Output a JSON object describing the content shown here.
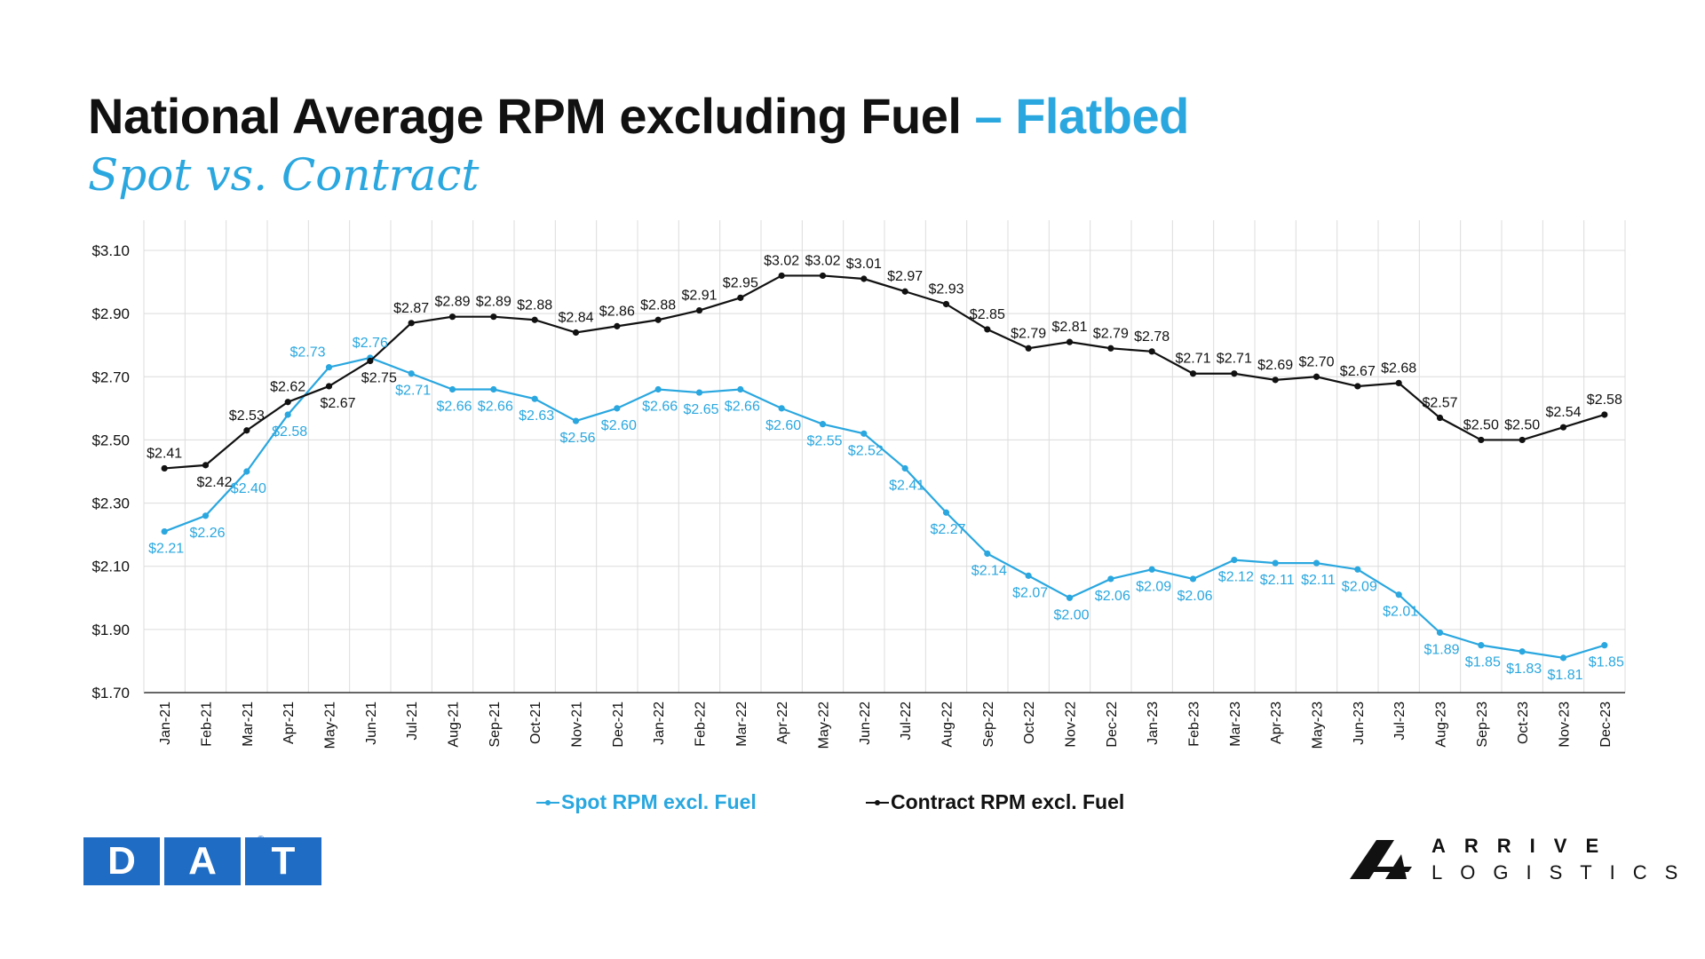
{
  "title": {
    "main": "National Average RPM excluding Fuel",
    "accent": "– Flatbed",
    "subtitle": "Spot vs. Contract"
  },
  "colors": {
    "spot": "#2aa7df",
    "contract": "#111111",
    "grid": "#dcdcdc",
    "dat_blue": "#1f6cc4"
  },
  "chart_data": {
    "type": "line",
    "categories": [
      "Jan-21",
      "Feb-21",
      "Mar-21",
      "Apr-21",
      "May-21",
      "Jun-21",
      "Jul-21",
      "Aug-21",
      "Sep-21",
      "Oct-21",
      "Nov-21",
      "Dec-21",
      "Jan-22",
      "Feb-22",
      "Mar-22",
      "Apr-22",
      "May-22",
      "Jun-22",
      "Jul-22",
      "Aug-22",
      "Sep-22",
      "Oct-22",
      "Nov-22",
      "Dec-22",
      "Jan-23",
      "Feb-23",
      "Mar-23",
      "Apr-23",
      "May-23",
      "Jun-23",
      "Jul-23",
      "Aug-23",
      "Sep-23",
      "Oct-23",
      "Nov-23",
      "Dec-23"
    ],
    "y_ticks": [
      "$3.10",
      "$2.90",
      "$2.70",
      "$2.50",
      "$2.30",
      "$2.10",
      "$1.90",
      "$1.70"
    ],
    "ylim": [
      1.7,
      3.1
    ],
    "grid": true,
    "legend_position": "bottom",
    "series": [
      {
        "name": "Spot RPM excl. Fuel",
        "color": "#2aa7df",
        "values": [
          2.21,
          2.26,
          2.4,
          2.58,
          2.73,
          2.76,
          2.71,
          2.66,
          2.66,
          2.63,
          2.56,
          2.6,
          2.66,
          2.65,
          2.66,
          2.6,
          2.55,
          2.52,
          2.41,
          2.27,
          2.14,
          2.07,
          2.0,
          2.06,
          2.09,
          2.06,
          2.12,
          2.11,
          2.11,
          2.09,
          2.01,
          1.89,
          1.85,
          1.83,
          1.81,
          1.85
        ],
        "labels": [
          "$2.21",
          "$2.26",
          "$2.40",
          "$2.58",
          "$2.73",
          "$2.76",
          "$2.71",
          "$2.66",
          "$2.66",
          "$2.63",
          "$2.56",
          "$2.60",
          "$2.66",
          "$2.65",
          "$2.66",
          "$2.60",
          "$2.55",
          "$2.52",
          "$2.41",
          "$2.27",
          "$2.14",
          "$2.07",
          "$2.00",
          "$2.06",
          "$2.09",
          "$2.06",
          "$2.12",
          "$2.11",
          "$2.11",
          "$2.09",
          "$2.01",
          "$1.89",
          "$1.85",
          "$1.83",
          "$1.81",
          "$1.85"
        ]
      },
      {
        "name": "Contract RPM excl. Fuel",
        "color": "#111111",
        "values": [
          2.41,
          2.42,
          2.53,
          2.62,
          2.67,
          2.75,
          2.87,
          2.89,
          2.89,
          2.88,
          2.84,
          2.86,
          2.88,
          2.91,
          2.95,
          3.02,
          3.02,
          3.01,
          2.97,
          2.93,
          2.85,
          2.79,
          2.81,
          2.79,
          2.78,
          2.71,
          2.71,
          2.69,
          2.7,
          2.67,
          2.68,
          2.57,
          2.5,
          2.5,
          2.54,
          2.58
        ],
        "labels": [
          "$2.41",
          "$2.42",
          "$2.53",
          "$2.62",
          "$2.67",
          "$2.75",
          "$2.87",
          "$2.89",
          "$2.89",
          "$2.88",
          "$2.84",
          "$2.86",
          "$2.88",
          "$2.91",
          "$2.95",
          "$3.02",
          "$3.02",
          "$3.01",
          "$2.97",
          "$2.93",
          "$2.85",
          "$2.79",
          "$2.81",
          "$2.79",
          "$2.78",
          "$2.71",
          "$2.71",
          "$2.69",
          "$2.70",
          "$2.67",
          "$2.68",
          "$2.57",
          "$2.50",
          "$2.50",
          "$2.54",
          "$2.58"
        ]
      }
    ]
  },
  "legend": {
    "spot": "Spot RPM excl. Fuel",
    "contract": "Contract RPM excl. Fuel"
  },
  "logos": {
    "dat": [
      "D",
      "A",
      "T"
    ],
    "dat_reg": "®",
    "arrive_line1": "ARRIVE",
    "arrive_line2": "LOGISTICS"
  }
}
